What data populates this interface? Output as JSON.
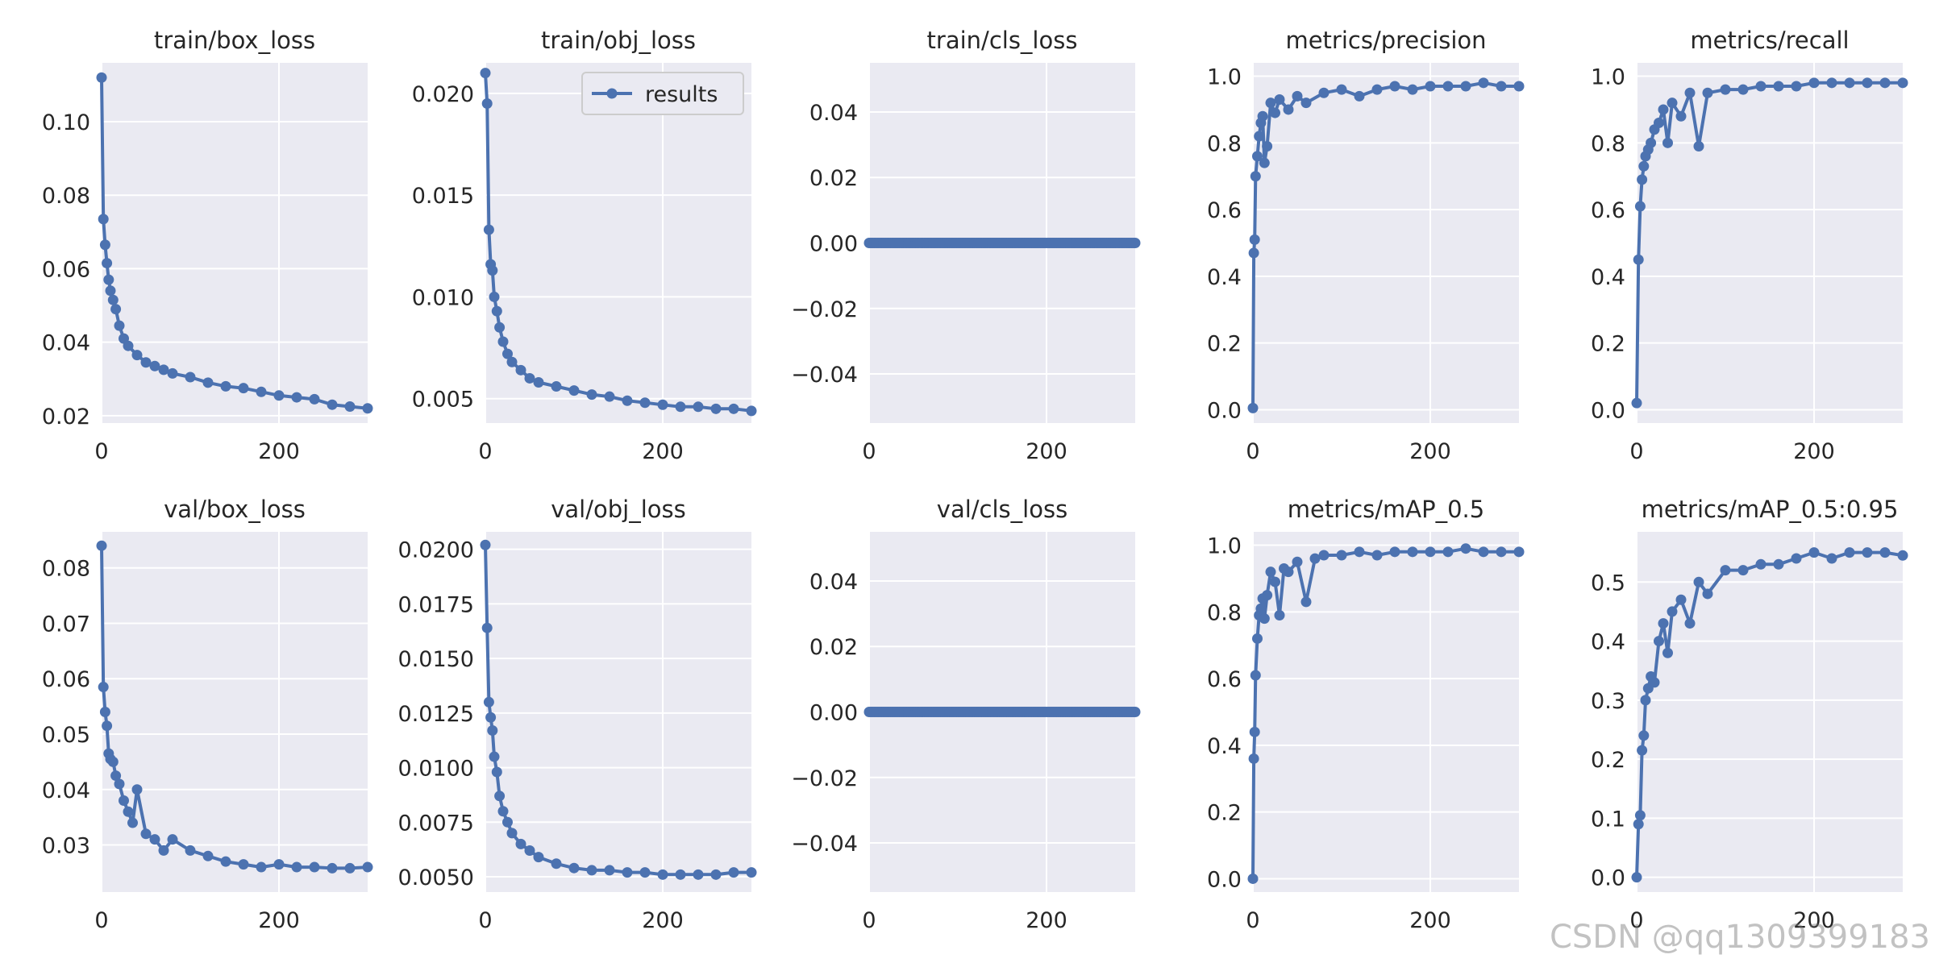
{
  "colors": {
    "line": "#4c72b0",
    "panel_bg": "#eaeaf2",
    "grid": "#ffffff",
    "text": "#262626"
  },
  "legend": {
    "label": "results"
  },
  "watermark": "CSDN @qq1309399183",
  "chart_data": [
    {
      "type": "line",
      "title": "train/box_loss",
      "xlim": [
        0,
        300
      ],
      "ylim": [
        0.018,
        0.116
      ],
      "xticks": [
        0,
        200
      ],
      "yticks": [
        0.02,
        0.04,
        0.06,
        0.08,
        0.1
      ],
      "ytick_labels": [
        "0.02",
        "0.04",
        "0.06",
        "0.08",
        "0.10"
      ],
      "x": [
        0,
        2,
        4,
        6,
        8,
        10,
        13,
        16,
        20,
        25,
        30,
        40,
        50,
        60,
        70,
        80,
        100,
        120,
        140,
        160,
        180,
        200,
        220,
        240,
        260,
        280,
        300
      ],
      "values": [
        0.112,
        0.0735,
        0.0665,
        0.0615,
        0.057,
        0.054,
        0.0515,
        0.049,
        0.0445,
        0.041,
        0.039,
        0.0365,
        0.0345,
        0.0335,
        0.0325,
        0.0315,
        0.0305,
        0.029,
        0.028,
        0.0275,
        0.0265,
        0.0255,
        0.025,
        0.0245,
        0.023,
        0.0225,
        0.022
      ]
    },
    {
      "type": "line",
      "title": "train/obj_loss",
      "xlim": [
        0,
        300
      ],
      "ylim": [
        0.0038,
        0.0215
      ],
      "xticks": [
        0,
        200
      ],
      "yticks": [
        0.005,
        0.01,
        0.015,
        0.02
      ],
      "ytick_labels": [
        "0.005",
        "0.010",
        "0.015",
        "0.020"
      ],
      "legend": true,
      "x": [
        0,
        2,
        4,
        6,
        8,
        10,
        13,
        16,
        20,
        25,
        30,
        40,
        50,
        60,
        80,
        100,
        120,
        140,
        160,
        180,
        200,
        220,
        240,
        260,
        280,
        300
      ],
      "values": [
        0.021,
        0.0195,
        0.0133,
        0.0116,
        0.0113,
        0.01,
        0.0093,
        0.0085,
        0.0078,
        0.0072,
        0.0068,
        0.0064,
        0.006,
        0.0058,
        0.0056,
        0.0054,
        0.0052,
        0.0051,
        0.0049,
        0.0048,
        0.0047,
        0.0046,
        0.0046,
        0.0045,
        0.0045,
        0.0044
      ]
    },
    {
      "type": "line",
      "title": "train/cls_loss",
      "xlim": [
        0,
        300
      ],
      "ylim": [
        -0.055,
        0.055
      ],
      "xticks": [
        0,
        200
      ],
      "yticks": [
        -0.04,
        -0.02,
        0.0,
        0.02,
        0.04
      ],
      "ytick_labels": [
        "−0.04",
        "−0.02",
        "0.00",
        "0.02",
        "0.04"
      ],
      "x": [
        0,
        300
      ],
      "values": [
        0.0,
        0.0
      ],
      "dense_points": 150
    },
    {
      "type": "line",
      "title": "metrics/precision",
      "xlim": [
        0,
        300
      ],
      "ylim": [
        -0.04,
        1.04
      ],
      "xticks": [
        0,
        200
      ],
      "yticks": [
        0.0,
        0.2,
        0.4,
        0.6,
        0.8,
        1.0
      ],
      "ytick_labels": [
        "0.0",
        "0.2",
        "0.4",
        "0.6",
        "0.8",
        "1.0"
      ],
      "x": [
        0,
        1,
        2,
        3,
        5,
        7,
        9,
        11,
        13,
        16,
        20,
        25,
        30,
        40,
        50,
        60,
        80,
        100,
        120,
        140,
        160,
        180,
        200,
        220,
        240,
        260,
        280,
        300
      ],
      "values": [
        0.005,
        0.47,
        0.51,
        0.7,
        0.76,
        0.82,
        0.86,
        0.88,
        0.74,
        0.79,
        0.92,
        0.89,
        0.93,
        0.9,
        0.94,
        0.92,
        0.95,
        0.96,
        0.94,
        0.96,
        0.97,
        0.96,
        0.97,
        0.97,
        0.97,
        0.98,
        0.97,
        0.97
      ]
    },
    {
      "type": "line",
      "title": "metrics/recall",
      "xlim": [
        0,
        300
      ],
      "ylim": [
        -0.04,
        1.04
      ],
      "xticks": [
        0,
        200
      ],
      "yticks": [
        0.0,
        0.2,
        0.4,
        0.6,
        0.8,
        1.0
      ],
      "ytick_labels": [
        "0.0",
        "0.2",
        "0.4",
        "0.6",
        "0.8",
        "1.0"
      ],
      "x": [
        0,
        2,
        4,
        6,
        8,
        10,
        13,
        16,
        20,
        25,
        30,
        35,
        40,
        50,
        60,
        70,
        80,
        100,
        120,
        140,
        160,
        180,
        200,
        220,
        240,
        260,
        280,
        300
      ],
      "values": [
        0.02,
        0.45,
        0.61,
        0.69,
        0.73,
        0.76,
        0.78,
        0.8,
        0.84,
        0.86,
        0.9,
        0.8,
        0.92,
        0.88,
        0.95,
        0.79,
        0.95,
        0.96,
        0.96,
        0.97,
        0.97,
        0.97,
        0.98,
        0.98,
        0.98,
        0.98,
        0.98,
        0.98
      ]
    },
    {
      "type": "line",
      "title": "val/box_loss",
      "xlim": [
        0,
        300
      ],
      "ylim": [
        0.0215,
        0.0865
      ],
      "xticks": [
        0,
        200
      ],
      "yticks": [
        0.03,
        0.04,
        0.05,
        0.06,
        0.07,
        0.08
      ],
      "ytick_labels": [
        "0.03",
        "0.04",
        "0.05",
        "0.06",
        "0.07",
        "0.08"
      ],
      "x": [
        0,
        2,
        4,
        6,
        8,
        10,
        13,
        16,
        20,
        25,
        30,
        35,
        40,
        50,
        60,
        70,
        80,
        100,
        120,
        140,
        160,
        180,
        200,
        220,
        240,
        260,
        280,
        300
      ],
      "values": [
        0.084,
        0.0585,
        0.054,
        0.0515,
        0.0465,
        0.0455,
        0.045,
        0.0425,
        0.041,
        0.038,
        0.036,
        0.034,
        0.04,
        0.032,
        0.031,
        0.029,
        0.031,
        0.029,
        0.028,
        0.027,
        0.0265,
        0.026,
        0.0265,
        0.026,
        0.026,
        0.0258,
        0.0258,
        0.026
      ]
    },
    {
      "type": "line",
      "title": "val/obj_loss",
      "xlim": [
        0,
        300
      ],
      "ylim": [
        0.0043,
        0.0208
      ],
      "xticks": [
        0,
        200
      ],
      "yticks": [
        0.005,
        0.0075,
        0.01,
        0.0125,
        0.015,
        0.0175,
        0.02
      ],
      "ytick_labels": [
        "0.0050",
        "0.0075",
        "0.0100",
        "0.0125",
        "0.0150",
        "0.0175",
        "0.0200"
      ],
      "x": [
        0,
        2,
        4,
        6,
        8,
        10,
        13,
        16,
        20,
        25,
        30,
        40,
        50,
        60,
        80,
        100,
        120,
        140,
        160,
        180,
        200,
        220,
        240,
        260,
        280,
        300
      ],
      "values": [
        0.0202,
        0.0164,
        0.013,
        0.0123,
        0.0117,
        0.0105,
        0.0098,
        0.0087,
        0.008,
        0.0075,
        0.007,
        0.0065,
        0.0062,
        0.0059,
        0.0056,
        0.0054,
        0.0053,
        0.0053,
        0.0052,
        0.0052,
        0.0051,
        0.0051,
        0.0051,
        0.0051,
        0.0052,
        0.0052
      ]
    },
    {
      "type": "line",
      "title": "val/cls_loss",
      "xlim": [
        0,
        300
      ],
      "ylim": [
        -0.055,
        0.055
      ],
      "xticks": [
        0,
        200
      ],
      "yticks": [
        -0.04,
        -0.02,
        0.0,
        0.02,
        0.04
      ],
      "ytick_labels": [
        "−0.04",
        "−0.02",
        "0.00",
        "0.02",
        "0.04"
      ],
      "x": [
        0,
        300
      ],
      "values": [
        0.0,
        0.0
      ],
      "dense_points": 150
    },
    {
      "type": "line",
      "title": "metrics/mAP_0.5",
      "xlim": [
        0,
        300
      ],
      "ylim": [
        -0.04,
        1.04
      ],
      "xticks": [
        0,
        200
      ],
      "yticks": [
        0.0,
        0.2,
        0.4,
        0.6,
        0.8,
        1.0
      ],
      "ytick_labels": [
        "0.0",
        "0.2",
        "0.4",
        "0.6",
        "0.8",
        "1.0"
      ],
      "x": [
        0,
        1,
        2,
        3,
        5,
        7,
        9,
        11,
        13,
        16,
        20,
        25,
        30,
        35,
        40,
        50,
        60,
        70,
        80,
        100,
        120,
        140,
        160,
        180,
        200,
        220,
        240,
        260,
        280,
        300
      ],
      "values": [
        0.0,
        0.36,
        0.44,
        0.61,
        0.72,
        0.79,
        0.81,
        0.84,
        0.78,
        0.85,
        0.92,
        0.89,
        0.79,
        0.93,
        0.92,
        0.95,
        0.83,
        0.96,
        0.97,
        0.97,
        0.98,
        0.97,
        0.98,
        0.98,
        0.98,
        0.98,
        0.99,
        0.98,
        0.98,
        0.98
      ]
    },
    {
      "type": "line",
      "title": "metrics/mAP_0.5:0.95",
      "xlim": [
        0,
        300
      ],
      "ylim": [
        -0.025,
        0.585
      ],
      "xticks": [
        0,
        200
      ],
      "yticks": [
        0.0,
        0.1,
        0.2,
        0.3,
        0.4,
        0.5
      ],
      "ytick_labels": [
        "0.0",
        "0.1",
        "0.2",
        "0.3",
        "0.4",
        "0.5"
      ],
      "x": [
        0,
        2,
        4,
        6,
        8,
        10,
        13,
        16,
        20,
        25,
        30,
        35,
        40,
        50,
        60,
        70,
        80,
        100,
        120,
        140,
        160,
        180,
        200,
        220,
        240,
        260,
        280,
        300
      ],
      "values": [
        0.0,
        0.09,
        0.105,
        0.215,
        0.24,
        0.3,
        0.32,
        0.34,
        0.33,
        0.4,
        0.43,
        0.38,
        0.45,
        0.47,
        0.43,
        0.5,
        0.48,
        0.52,
        0.52,
        0.53,
        0.53,
        0.54,
        0.55,
        0.54,
        0.55,
        0.55,
        0.55,
        0.545
      ]
    }
  ]
}
